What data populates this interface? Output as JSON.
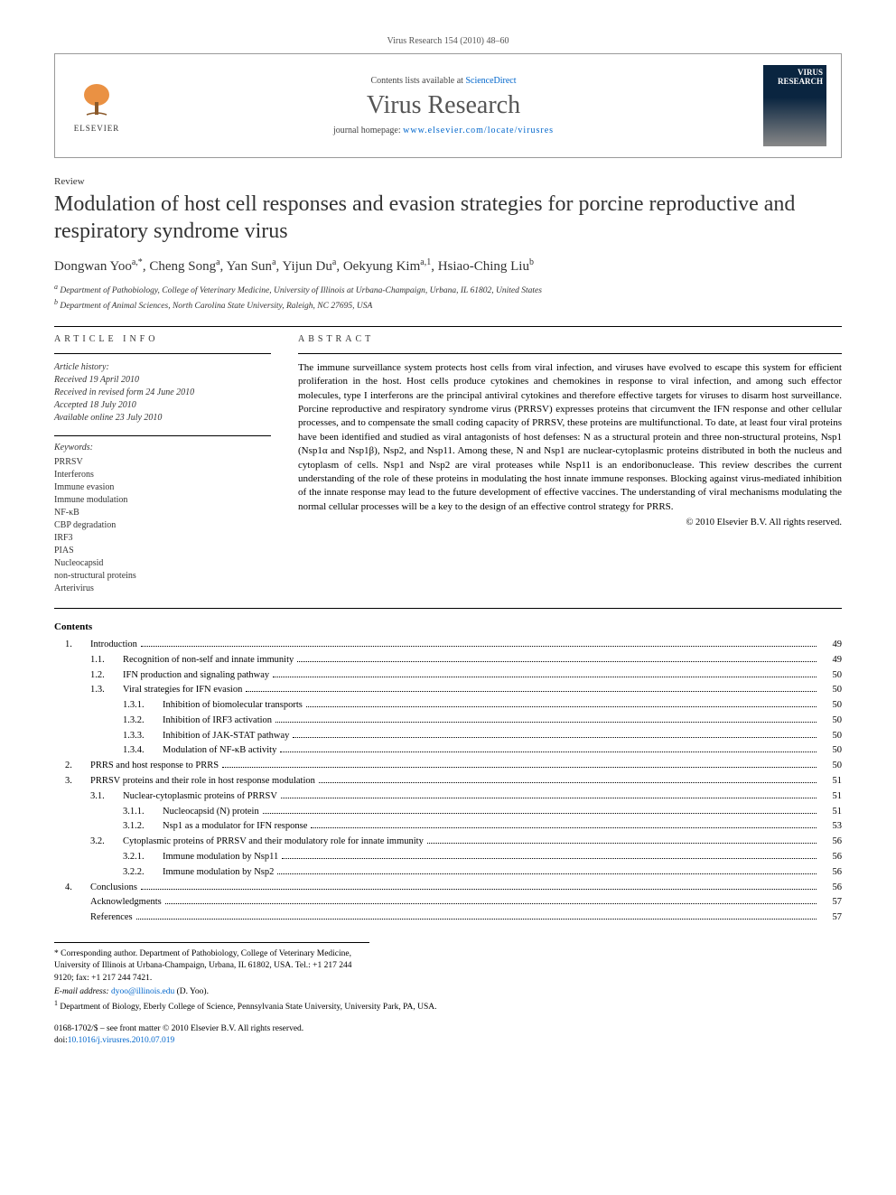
{
  "journal_ref": "Virus Research 154 (2010) 48–60",
  "header": {
    "contents_lists": "Contents lists available at",
    "sciencedirect": "ScienceDirect",
    "journal_name": "Virus Research",
    "homepage_label": "journal homepage:",
    "homepage_url": "www.elsevier.com/locate/virusres",
    "publisher": "ELSEVIER",
    "cover_text_1": "VIRUS",
    "cover_text_2": "RESEARCH"
  },
  "article": {
    "type": "Review",
    "title": "Modulation of host cell responses and evasion strategies for porcine reproductive and respiratory syndrome virus",
    "authors_html": "Dongwan Yoo<sup>a,*</sup>, Cheng Song<sup>a</sup>, Yan Sun<sup>a</sup>, Yijun Du<sup>a</sup>, Oekyung Kim<sup>a,1</sup>, Hsiao-Ching Liu<sup>b</sup>",
    "affiliations": [
      "Department of Pathobiology, College of Veterinary Medicine, University of Illinois at Urbana-Champaign, Urbana, IL 61802, United States",
      "Department of Animal Sciences, North Carolina State University, Raleigh, NC 27695, USA"
    ]
  },
  "info": {
    "heading": "ARTICLE INFO",
    "history_label": "Article history:",
    "history": [
      "Received 19 April 2010",
      "Received in revised form 24 June 2010",
      "Accepted 18 July 2010",
      "Available online 23 July 2010"
    ],
    "keywords_label": "Keywords:",
    "keywords": [
      "PRRSV",
      "Interferons",
      "Immune evasion",
      "Immune modulation",
      "NF-κB",
      "CBP degradation",
      "IRF3",
      "PIAS",
      "Nucleocapsid",
      "non-structural proteins",
      "Arterivirus"
    ]
  },
  "abstract": {
    "heading": "ABSTRACT",
    "text": "The immune surveillance system protects host cells from viral infection, and viruses have evolved to escape this system for efficient proliferation in the host. Host cells produce cytokines and chemokines in response to viral infection, and among such effector molecules, type I interferons are the principal antiviral cytokines and therefore effective targets for viruses to disarm host surveillance. Porcine reproductive and respiratory syndrome virus (PRRSV) expresses proteins that circumvent the IFN response and other cellular processes, and to compensate the small coding capacity of PRRSV, these proteins are multifunctional. To date, at least four viral proteins have been identified and studied as viral antagonists of host defenses: N as a structural protein and three non-structural proteins, Nsp1 (Nsp1α and Nsp1β), Nsp2, and Nsp11. Among these, N and Nsp1 are nuclear-cytoplasmic proteins distributed in both the nucleus and cytoplasm of cells. Nsp1 and Nsp2 are viral proteases while Nsp11 is an endoribonuclease. This review describes the current understanding of the role of these proteins in modulating the host innate immune responses. Blocking against virus-mediated inhibition of the innate response may lead to the future development of effective vaccines. The understanding of viral mechanisms modulating the normal cellular processes will be a key to the design of an effective control strategy for PRRS.",
    "copyright": "© 2010 Elsevier B.V. All rights reserved."
  },
  "contents": {
    "heading": "Contents",
    "items": [
      {
        "num": "1.",
        "label": "Introduction",
        "page": "49",
        "level": 1
      },
      {
        "num": "1.1.",
        "label": "Recognition of non-self and innate immunity",
        "page": "49",
        "level": 2
      },
      {
        "num": "1.2.",
        "label": "IFN production and signaling pathway",
        "page": "50",
        "level": 2
      },
      {
        "num": "1.3.",
        "label": "Viral strategies for IFN evasion",
        "page": "50",
        "level": 2
      },
      {
        "num": "1.3.1.",
        "label": "Inhibition of biomolecular transports",
        "page": "50",
        "level": 3
      },
      {
        "num": "1.3.2.",
        "label": "Inhibition of IRF3 activation",
        "page": "50",
        "level": 3
      },
      {
        "num": "1.3.3.",
        "label": "Inhibition of JAK-STAT pathway",
        "page": "50",
        "level": 3
      },
      {
        "num": "1.3.4.",
        "label": "Modulation of NF-κB activity",
        "page": "50",
        "level": 3
      },
      {
        "num": "2.",
        "label": "PRRS and host response to PRRS",
        "page": "50",
        "level": 1
      },
      {
        "num": "3.",
        "label": "PRRSV proteins and their role in host response modulation",
        "page": "51",
        "level": 1
      },
      {
        "num": "3.1.",
        "label": "Nuclear-cytoplasmic proteins of PRRSV",
        "page": "51",
        "level": 2
      },
      {
        "num": "3.1.1.",
        "label": "Nucleocapsid (N) protein",
        "page": "51",
        "level": 3
      },
      {
        "num": "3.1.2.",
        "label": "Nsp1 as a modulator for IFN response",
        "page": "53",
        "level": 3
      },
      {
        "num": "3.2.",
        "label": "Cytoplasmic proteins of PRRSV and their modulatory role for innate immunity",
        "page": "56",
        "level": 2
      },
      {
        "num": "3.2.1.",
        "label": "Immune modulation by Nsp11",
        "page": "56",
        "level": 3
      },
      {
        "num": "3.2.2.",
        "label": "Immune modulation by Nsp2",
        "page": "56",
        "level": 3
      },
      {
        "num": "4.",
        "label": "Conclusions",
        "page": "56",
        "level": 1
      },
      {
        "num": "",
        "label": "Acknowledgments",
        "page": "57",
        "level": 0
      },
      {
        "num": "",
        "label": "References",
        "page": "57",
        "level": 0
      }
    ]
  },
  "footnotes": {
    "corresponding": "* Corresponding author. Department of Pathobiology, College of Veterinary Medicine, University of Illinois at Urbana-Champaign, Urbana, IL 61802, USA. Tel.: +1 217 244 9120; fax: +1 217 244 7421.",
    "email_label": "E-mail address:",
    "email": "dyoo@illinois.edu",
    "email_who": "(D. Yoo).",
    "note1": "Department of Biology, Eberly College of Science, Pennsylvania State University, University Park, PA, USA.",
    "note1_marker": "1"
  },
  "bottom": {
    "issn_line": "0168-1702/$ – see front matter © 2010 Elsevier B.V. All rights reserved.",
    "doi_label": "doi:",
    "doi": "10.1016/j.virusres.2010.07.019"
  }
}
